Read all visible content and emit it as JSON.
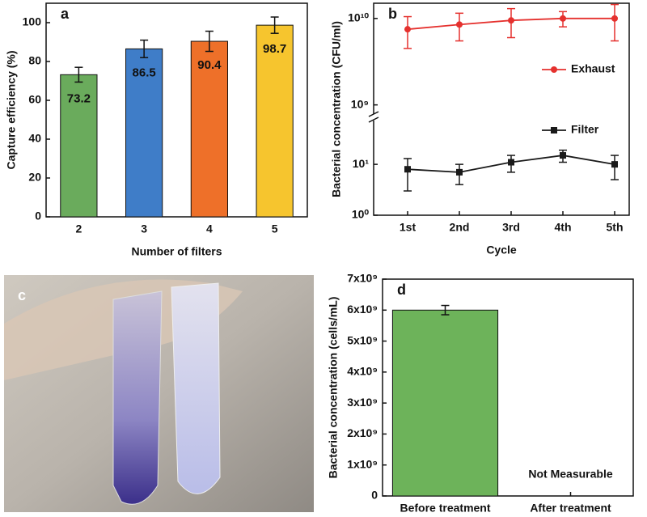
{
  "chart_data": [
    {
      "type": "bar",
      "panel": "a",
      "categories": [
        "2",
        "3",
        "4",
        "5"
      ],
      "values": [
        73.2,
        86.5,
        90.4,
        98.7
      ],
      "errors": [
        3.8,
        4.5,
        5.2,
        4.2
      ],
      "colors": [
        "#6aab5c",
        "#3f7dc8",
        "#ee7029",
        "#f6c52e"
      ],
      "show_value_labels": true,
      "xlabel": "Number of filters",
      "ylabel": "Capture efficiency (%)",
      "ylim": [
        0,
        110
      ],
      "yticks": [
        0,
        20,
        40,
        60,
        80,
        100
      ]
    },
    {
      "type": "line",
      "panel": "b",
      "log_scale": true,
      "axis_break": true,
      "categories": [
        "1st",
        "2nd",
        "3rd",
        "4th",
        "5th"
      ],
      "series": [
        {
          "name": "Exhaust",
          "color": "#e5312e",
          "marker": "circle",
          "axis": "y2",
          "values": [
            7500000000,
            8500000000,
            9500000000,
            10000000000,
            10000000000
          ],
          "errors": [
            3000000000,
            3000000000,
            3500000000,
            2000000000,
            4500000000
          ]
        },
        {
          "name": "Filter",
          "color": "#1a1a1a",
          "marker": "square",
          "values": [
            8,
            7,
            11,
            15,
            10
          ],
          "errors": [
            5,
            3,
            4,
            4,
            5
          ]
        }
      ],
      "xlabel": "Cycle",
      "ylabel": "Bacterial concentration (CFU/ml)",
      "ylim": [
        1,
        70
      ],
      "yticks": [
        {
          "value": 1,
          "label": "10⁰"
        },
        {
          "value": 10,
          "label": "10¹"
        }
      ],
      "y2lim": [
        800000000,
        15000000000
      ],
      "y2ticks": [
        {
          "value": 1000000000,
          "label": "10⁹"
        },
        {
          "value": 10000000000,
          "label": "10¹⁰"
        }
      ]
    },
    {
      "type": "bar",
      "panel": "d",
      "categories": [
        "Before treatment",
        "After treatment"
      ],
      "values": [
        6000000000,
        null
      ],
      "errors": [
        150000000,
        null
      ],
      "color": "#6db35a",
      "annotation": "Not Measurable",
      "ylabel": "Bacterial concentration (cells/mL)",
      "ylim": [
        0,
        7000000000
      ],
      "yticks": [
        0,
        {
          "value": 1000000000,
          "label": "1x10⁹"
        },
        {
          "value": 2000000000,
          "label": "2x10⁹"
        },
        {
          "value": 3000000000,
          "label": "3x10⁹"
        },
        {
          "value": 4000000000,
          "label": "4x10⁹"
        },
        {
          "value": 5000000000,
          "label": "5x10⁹"
        },
        {
          "value": 6000000000,
          "label": "6x10⁹"
        },
        {
          "value": 7000000000,
          "label": "7x10⁹"
        }
      ]
    }
  ],
  "photo": {
    "panel": "c"
  }
}
